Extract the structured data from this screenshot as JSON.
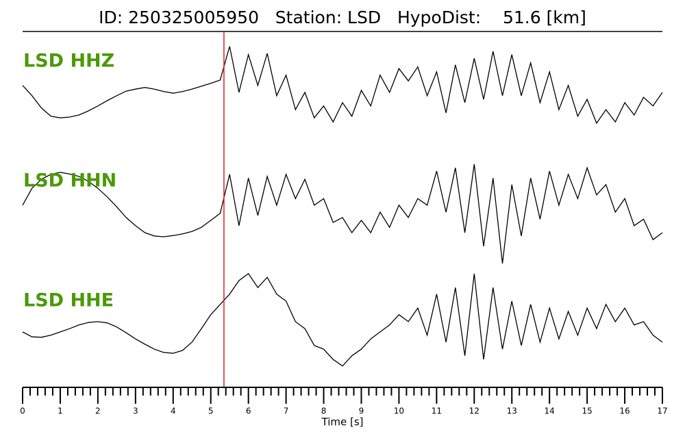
{
  "chart_data": {
    "type": "seismogram",
    "title": "ID: 250325005950   Station: LSD   HypoDist:    51.6 [km]",
    "xlabel": "Time [s]",
    "xlim": [
      0,
      17
    ],
    "xticks": [
      0,
      1,
      2,
      3,
      4,
      5,
      6,
      7,
      8,
      9,
      10,
      11,
      12,
      13,
      14,
      15,
      16,
      17
    ],
    "xminorticks": [
      0.2,
      0.4,
      0.6,
      0.8,
      1.2,
      1.4,
      1.6,
      1.8,
      2.2,
      2.4,
      2.6,
      2.8,
      3.2,
      3.4,
      3.6,
      3.8,
      4.2,
      4.4,
      4.6,
      4.8,
      5.2,
      5.4,
      5.6,
      5.8,
      6.2,
      6.4,
      6.6,
      6.8,
      7.2,
      7.4,
      7.6,
      7.8,
      8.2,
      8.4,
      8.6,
      8.8,
      9.2,
      9.4,
      9.6,
      9.8,
      10.2,
      10.4,
      10.6,
      10.8,
      11.2,
      11.4,
      11.6,
      11.8,
      12.2,
      12.4,
      12.6,
      12.8,
      13.2,
      13.4,
      13.6,
      13.8,
      14.2,
      14.4,
      14.6,
      14.8,
      15.2,
      15.4,
      15.6,
      15.8,
      16.2,
      16.4,
      16.6,
      16.8
    ],
    "pick": 5.35,
    "pick_color": "#e8191c",
    "ylim": [
      -1.5,
      1.5
    ],
    "label_color": "#4a9a08",
    "x": [
      0,
      0.25,
      0.5,
      0.75,
      1,
      1.25,
      1.5,
      1.75,
      2,
      2.25,
      2.5,
      2.75,
      3,
      3.25,
      3.5,
      3.75,
      4,
      4.25,
      4.5,
      4.75,
      5,
      5.25,
      5.5,
      5.75,
      6,
      6.25,
      6.5,
      6.75,
      7,
      7.25,
      7.5,
      7.75,
      8,
      8.25,
      8.5,
      8.75,
      9,
      9.25,
      9.5,
      9.75,
      10,
      10.25,
      10.5,
      10.75,
      11,
      11.25,
      11.5,
      11.75,
      12,
      12.25,
      12.5,
      12.75,
      13,
      13.25,
      13.5,
      13.75,
      14,
      14.25,
      14.5,
      14.75,
      15,
      15.25,
      15.5,
      15.75,
      16,
      16.25,
      16.5,
      16.75,
      17
    ],
    "series": [
      {
        "name": "LSD HHZ",
        "color": "#000000",
        "values": [
          -0.08,
          -0.33,
          -0.63,
          -0.83,
          -0.87,
          -0.85,
          -0.8,
          -0.7,
          -0.58,
          -0.45,
          -0.33,
          -0.22,
          -0.17,
          -0.13,
          -0.17,
          -0.23,
          -0.27,
          -0.23,
          -0.17,
          -0.1,
          -0.03,
          0.05,
          0.87,
          -0.25,
          0.67,
          -0.08,
          0.7,
          -0.33,
          0.17,
          -0.67,
          -0.25,
          -0.87,
          -0.58,
          -0.97,
          -0.5,
          -0.83,
          -0.2,
          -0.58,
          0.17,
          -0.25,
          0.33,
          0.03,
          0.37,
          -0.33,
          0.25,
          -0.75,
          0.42,
          -0.5,
          0.58,
          -0.42,
          0.75,
          -0.33,
          0.67,
          -0.33,
          0.47,
          -0.5,
          0.25,
          -0.67,
          -0.08,
          -0.83,
          -0.42,
          -1.0,
          -0.67,
          -0.97,
          -0.5,
          -0.8,
          -0.37,
          -0.58,
          -0.25
        ]
      },
      {
        "name": "LSD HHN",
        "color": "#000000",
        "values": [
          -0.08,
          0.33,
          0.55,
          0.67,
          0.72,
          0.68,
          0.62,
          0.5,
          0.33,
          0.12,
          -0.12,
          -0.38,
          -0.58,
          -0.75,
          -0.83,
          -0.85,
          -0.82,
          -0.78,
          -0.72,
          -0.62,
          -0.45,
          -0.28,
          0.67,
          -0.58,
          0.58,
          -0.33,
          0.62,
          -0.08,
          0.67,
          0.08,
          0.55,
          -0.08,
          0.08,
          -0.5,
          -0.38,
          -0.75,
          -0.45,
          -0.75,
          -0.25,
          -0.62,
          -0.08,
          -0.38,
          0.08,
          -0.08,
          0.75,
          -0.25,
          0.83,
          -0.75,
          0.92,
          -1.08,
          0.58,
          -1.5,
          0.42,
          -0.83,
          0.58,
          -0.42,
          0.75,
          -0.08,
          0.67,
          0.08,
          0.83,
          0.17,
          0.42,
          -0.25,
          0.08,
          -0.58,
          -0.42,
          -0.92,
          -0.75
        ]
      },
      {
        "name": "LSD HHE",
        "color": "#000000",
        "values": [
          -0.25,
          -0.37,
          -0.38,
          -0.33,
          -0.25,
          -0.17,
          -0.08,
          -0.02,
          0,
          -0.03,
          -0.13,
          -0.27,
          -0.42,
          -0.55,
          -0.67,
          -0.75,
          -0.77,
          -0.7,
          -0.5,
          -0.17,
          0.17,
          0.42,
          0.67,
          1.0,
          1.17,
          0.83,
          1.08,
          0.67,
          0.5,
          0,
          -0.17,
          -0.58,
          -0.67,
          -0.92,
          -1.08,
          -0.83,
          -0.67,
          -0.42,
          -0.25,
          -0.08,
          0.17,
          0,
          0.33,
          -0.33,
          0.67,
          -0.5,
          0.83,
          -0.83,
          1.17,
          -0.92,
          0.83,
          -0.67,
          0.5,
          -0.58,
          0.42,
          -0.5,
          0.33,
          -0.42,
          0.25,
          -0.33,
          0.33,
          -0.17,
          0.42,
          0,
          0.33,
          -0.08,
          0,
          -0.33,
          -0.5
        ]
      }
    ]
  }
}
